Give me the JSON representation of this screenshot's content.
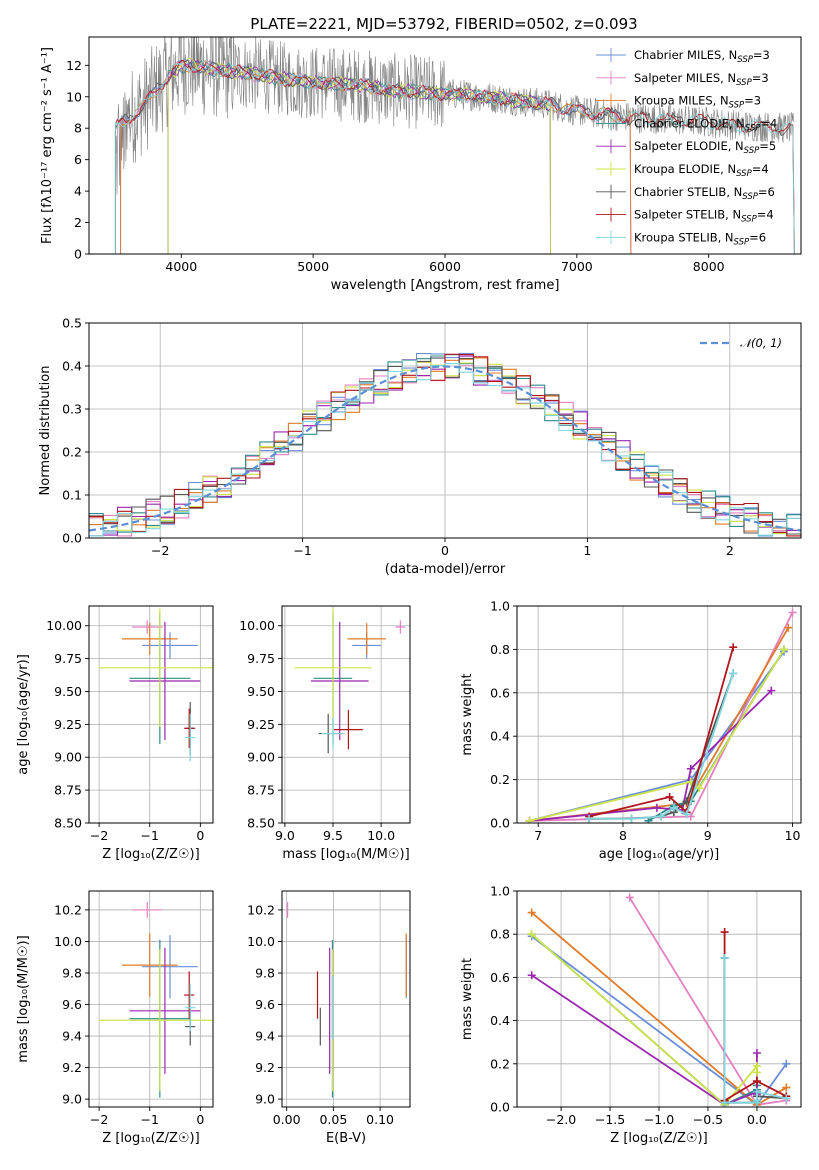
{
  "figure_title": "PLATE=2221, MJD=53792, FIBERID=0502, z=0.093",
  "colors": {
    "Chabrier MILES": "#6a8fd8",
    "Salpeter MILES": "#e47fc0",
    "Kroupa MILES": "#e07b28",
    "Chabrier ELODIE": "#2e8b8b",
    "Salpeter ELODIE": "#9b27b0",
    "Kroupa ELODIE": "#cde34a",
    "Chabrier STELIB": "#555555",
    "Salpeter STELIB": "#b0151c",
    "Kroupa STELIB": "#7fd6dc",
    "data": "#808080",
    "normal": "#5b8fd6"
  },
  "chart_data": [
    {
      "panel": "spectrum",
      "type": "line",
      "xlabel": "wavelength [Angstrom, rest frame]",
      "ylabel": "Flux [fλ10⁻¹⁷ erg cm⁻² s⁻¹ A⁻¹]",
      "xlim": [
        3300,
        8700
      ],
      "ylim": [
        0,
        13.8
      ],
      "xticks": [
        4000,
        5000,
        6000,
        7000,
        8000
      ],
      "yticks": [
        0,
        2,
        4,
        6,
        8,
        10,
        12
      ],
      "grid": false,
      "legend_position": "top-right",
      "legend": [
        {
          "label": "Chabrier MILES, N",
          "sub": "SSP",
          "val": "=3"
        },
        {
          "label": "Salpeter MILES, N",
          "sub": "SSP",
          "val": "=3"
        },
        {
          "label": "Kroupa MILES, N",
          "sub": "SSP",
          "val": "=3"
        },
        {
          "label": "Chabrier ELODIE, N",
          "sub": "SSP",
          "val": "=4"
        },
        {
          "label": "Salpeter ELODIE, N",
          "sub": "SSP",
          "val": "=5"
        },
        {
          "label": "Kroupa ELODIE, N",
          "sub": "SSP",
          "val": "=4"
        },
        {
          "label": "Chabrier STELIB, N",
          "sub": "SSP",
          "val": "=6"
        },
        {
          "label": "Salpeter STELIB, N",
          "sub": "SSP",
          "val": "=4"
        },
        {
          "label": "Kroupa STELIB, N",
          "sub": "SSP",
          "val": "=6"
        }
      ],
      "continuum": {
        "x": [
          3500,
          3600,
          3700,
          3800,
          3900,
          4000,
          4100,
          4200,
          4400,
          4600,
          4800,
          5000,
          5200,
          5400,
          5600,
          5800,
          6000,
          6200,
          6400,
          6600,
          6800,
          7000,
          7200,
          7400,
          7600,
          7800,
          8000,
          8200,
          8400,
          8600
        ],
        "y": [
          8.0,
          8.6,
          9.3,
          10.3,
          11.3,
          12.0,
          12.0,
          11.8,
          11.6,
          11.4,
          11.1,
          10.9,
          10.8,
          10.7,
          10.4,
          10.3,
          10.2,
          10.1,
          9.9,
          9.7,
          9.5,
          9.1,
          8.9,
          8.7,
          8.6,
          8.5,
          8.4,
          8.2,
          8.1,
          8.0
        ]
      },
      "model_ranges": {
        "Chabrier MILES": [
          3540,
          7410
        ],
        "Salpeter MILES": [
          3540,
          7410
        ],
        "Kroupa MILES": [
          3540,
          7410
        ],
        "Chabrier ELODIE": [
          3900,
          6800
        ],
        "Salpeter ELODIE": [
          3900,
          6800
        ],
        "Kroupa ELODIE": [
          3900,
          6800
        ],
        "Chabrier STELIB": [
          3500,
          8650
        ],
        "Salpeter STELIB": [
          3500,
          8650
        ],
        "Kroupa STELIB": [
          3500,
          8650
        ]
      }
    },
    {
      "panel": "residual_histogram",
      "type": "line",
      "xlabel": "(data-model)/error",
      "ylabel": "Normed distribution",
      "xlim": [
        -2.5,
        2.5
      ],
      "ylim": [
        0,
        0.5
      ],
      "xticks": [
        -2,
        -1,
        0,
        1,
        2
      ],
      "yticks": [
        0.0,
        0.1,
        0.2,
        0.3,
        0.4,
        0.5
      ],
      "grid": true,
      "legend_position": "top-right",
      "legend": [
        {
          "label": "𝒩(0, 1)"
        }
      ],
      "bin_edges_start": -2.5,
      "bin_width": 0.1,
      "series_note_free": true
    },
    {
      "panel": "age_vs_Z",
      "type": "scatter",
      "xlabel": "Z [log₁₀(Z/Z☉)]",
      "ylabel": "age  [log₁₀(age/yr)]",
      "xlim": [
        -2.2,
        0.25
      ],
      "ylim": [
        8.5,
        10.15
      ],
      "xticks": [
        -2,
        -1,
        0
      ],
      "yticks": [
        8.5,
        8.75,
        9.0,
        9.25,
        9.5,
        9.75,
        10.0
      ],
      "grid": true,
      "points": [
        {
          "s": "Chabrier MILES",
          "x": -0.6,
          "xerr": 0.55,
          "y": 9.85,
          "yerr": 0.1
        },
        {
          "s": "Salpeter MILES",
          "x": -1.05,
          "xerr": 0.3,
          "y": 9.99,
          "yerr": 0.05
        },
        {
          "s": "Kroupa MILES",
          "x": -1.0,
          "xerr": 0.55,
          "y": 9.9,
          "yerr": 0.12
        },
        {
          "s": "Chabrier ELODIE",
          "x": -0.8,
          "xerr": 0.6,
          "y": 9.6,
          "yerr": 0.5
        },
        {
          "s": "Salpeter ELODIE",
          "x": -0.7,
          "xerr": 0.7,
          "y": 9.58,
          "yerr": 0.45
        },
        {
          "s": "Kroupa ELODIE",
          "x": -0.8,
          "xerr": 1.2,
          "y": 9.68,
          "yerr": 0.45
        },
        {
          "s": "Chabrier STELIB",
          "x": -0.2,
          "xerr": 0.1,
          "y": 9.22,
          "yerr": 0.2
        },
        {
          "s": "Salpeter STELIB",
          "x": -0.22,
          "xerr": 0.1,
          "y": 9.22,
          "yerr": 0.15
        },
        {
          "s": "Kroupa STELIB",
          "x": -0.2,
          "xerr": 0.1,
          "y": 9.15,
          "yerr": 0.18
        }
      ]
    },
    {
      "panel": "age_vs_mass",
      "type": "scatter",
      "xlabel": "mass [log₁₀(M/M☉)]",
      "ylabel": "",
      "xlim": [
        8.97,
        10.3
      ],
      "ylim": [
        8.5,
        10.15
      ],
      "xticks": [
        9.0,
        9.5,
        10.0
      ],
      "yticks": [
        8.5,
        8.75,
        9.0,
        9.25,
        9.5,
        9.75,
        10.0
      ],
      "grid": true,
      "points": [
        {
          "s": "Chabrier MILES",
          "x": 9.85,
          "xerr": 0.15,
          "y": 9.85,
          "yerr": 0.1
        },
        {
          "s": "Salpeter MILES",
          "x": 10.2,
          "xerr": 0.05,
          "y": 9.99,
          "yerr": 0.05
        },
        {
          "s": "Kroupa MILES",
          "x": 9.85,
          "xerr": 0.2,
          "y": 9.9,
          "yerr": 0.12
        },
        {
          "s": "Chabrier ELODIE",
          "x": 9.5,
          "xerr": 0.2,
          "y": 9.6,
          "yerr": 0.5
        },
        {
          "s": "Salpeter ELODIE",
          "x": 9.57,
          "xerr": 0.3,
          "y": 9.58,
          "yerr": 0.45
        },
        {
          "s": "Kroupa ELODIE",
          "x": 9.5,
          "xerr": 0.4,
          "y": 9.68,
          "yerr": 0.45
        },
        {
          "s": "Chabrier STELIB",
          "x": 9.45,
          "xerr": 0.1,
          "y": 9.18,
          "yerr": 0.15
        },
        {
          "s": "Salpeter STELIB",
          "x": 9.66,
          "xerr": 0.15,
          "y": 9.21,
          "yerr": 0.15
        },
        {
          "s": "Kroupa STELIB",
          "x": 9.5,
          "xerr": 0.12,
          "y": 9.18,
          "yerr": 0.12
        }
      ]
    },
    {
      "panel": "weight_vs_age",
      "type": "line",
      "xlabel": "age  [log₁₀(age/yr)]",
      "ylabel": "mass weight",
      "xlim": [
        6.75,
        10.1
      ],
      "ylim": [
        0,
        1.0
      ],
      "xticks": [
        7,
        8,
        9,
        10
      ],
      "yticks": [
        0.0,
        0.2,
        0.4,
        0.6,
        0.8,
        1.0
      ],
      "grid": true,
      "series": [
        {
          "s": "Chabrier MILES",
          "x": [
            6.9,
            8.8,
            9.9
          ],
          "y": [
            0.01,
            0.2,
            0.79
          ]
        },
        {
          "s": "Salpeter MILES",
          "x": [
            6.9,
            8.8,
            10.0
          ],
          "y": [
            0.01,
            0.03,
            0.97
          ]
        },
        {
          "s": "Kroupa MILES",
          "x": [
            6.9,
            8.75,
            9.95
          ],
          "y": [
            0.01,
            0.09,
            0.9
          ]
        },
        {
          "s": "Chabrier ELODIE",
          "x": [
            8.3,
            8.6,
            8.8,
            9.9
          ],
          "y": [
            0.01,
            0.08,
            0.1,
            0.8
          ]
        },
        {
          "s": "Salpeter ELODIE",
          "x": [
            6.9,
            8.4,
            8.7,
            8.8,
            9.75
          ],
          "y": [
            0.01,
            0.07,
            0.06,
            0.25,
            0.61
          ]
        },
        {
          "s": "Kroupa ELODIE",
          "x": [
            6.9,
            8.8,
            8.9,
            9.9
          ],
          "y": [
            0.01,
            0.19,
            0.16,
            0.8
          ]
        },
        {
          "s": "Chabrier STELIB",
          "x": [
            7.6,
            8.1,
            8.45,
            8.6,
            8.75,
            9.3
          ],
          "y": [
            0.02,
            0.02,
            0.03,
            0.05,
            0.1,
            0.69
          ]
        },
        {
          "s": "Salpeter STELIB",
          "x": [
            7.6,
            8.55,
            8.75,
            9.3
          ],
          "y": [
            0.03,
            0.12,
            0.05,
            0.81
          ]
        },
        {
          "s": "Kroupa STELIB",
          "x": [
            7.6,
            8.1,
            8.45,
            8.6,
            8.75,
            9.3
          ],
          "y": [
            0.02,
            0.02,
            0.03,
            0.07,
            0.04,
            0.69
          ]
        }
      ]
    },
    {
      "panel": "mass_vs_Z",
      "type": "scatter",
      "xlabel": "Z [log₁₀(Z/Z☉)]",
      "ylabel": "mass [log₁₀(M/M☉)]",
      "xlim": [
        -2.2,
        0.25
      ],
      "ylim": [
        8.95,
        10.32
      ],
      "xticks": [
        -2,
        -1,
        0
      ],
      "yticks": [
        9.0,
        9.2,
        9.4,
        9.6,
        9.8,
        10.0,
        10.2
      ],
      "grid": true,
      "points": [
        {
          "s": "Chabrier MILES",
          "x": -0.6,
          "xerr": 0.55,
          "y": 9.84,
          "yerr": 0.2
        },
        {
          "s": "Salpeter MILES",
          "x": -1.05,
          "xerr": 0.3,
          "y": 10.2,
          "yerr": 0.05
        },
        {
          "s": "Kroupa MILES",
          "x": -1.0,
          "xerr": 0.55,
          "y": 9.85,
          "yerr": 0.2
        },
        {
          "s": "Chabrier ELODIE",
          "x": -0.8,
          "xerr": 0.6,
          "y": 9.51,
          "yerr": 0.5
        },
        {
          "s": "Salpeter ELODIE",
          "x": -0.7,
          "xerr": 0.7,
          "y": 9.56,
          "yerr": 0.4
        },
        {
          "s": "Kroupa ELODIE",
          "x": -0.8,
          "xerr": 1.2,
          "y": 9.5,
          "yerr": 0.45
        },
        {
          "s": "Chabrier STELIB",
          "x": -0.2,
          "xerr": 0.1,
          "y": 9.46,
          "yerr": 0.12
        },
        {
          "s": "Salpeter STELIB",
          "x": -0.22,
          "xerr": 0.1,
          "y": 9.66,
          "yerr": 0.15
        },
        {
          "s": "Kroupa STELIB",
          "x": -0.2,
          "xerr": 0.1,
          "y": 9.58,
          "yerr": 0.15
        }
      ]
    },
    {
      "panel": "mass_vs_EBV",
      "type": "scatter",
      "xlabel": "E(B-V)",
      "ylabel": "",
      "xlim": [
        -0.005,
        0.132
      ],
      "ylim": [
        8.95,
        10.32
      ],
      "xticks": [
        0.0,
        0.05,
        0.1
      ],
      "xticklabels": [
        "0.00",
        "0.05",
        "0.10"
      ],
      "yticks": [
        9.0,
        9.2,
        9.4,
        9.6,
        9.8,
        10.0,
        10.2
      ],
      "grid": true,
      "points": [
        {
          "s": "Chabrier MILES",
          "x": 0.128,
          "xerr": 0,
          "y": 9.84,
          "yerr": 0.2
        },
        {
          "s": "Salpeter MILES",
          "x": 0.001,
          "xerr": 0,
          "y": 10.2,
          "yerr": 0.05
        },
        {
          "s": "Kroupa MILES",
          "x": 0.128,
          "xerr": 0,
          "y": 9.85,
          "yerr": 0.2
        },
        {
          "s": "Chabrier ELODIE",
          "x": 0.049,
          "xerr": 0,
          "y": 9.51,
          "yerr": 0.5
        },
        {
          "s": "Salpeter ELODIE",
          "x": 0.046,
          "xerr": 0,
          "y": 9.56,
          "yerr": 0.4
        },
        {
          "s": "Kroupa ELODIE",
          "x": 0.049,
          "xerr": 0,
          "y": 9.5,
          "yerr": 0.45
        },
        {
          "s": "Chabrier STELIB",
          "x": 0.036,
          "xerr": 0,
          "y": 9.46,
          "yerr": 0.12
        },
        {
          "s": "Salpeter STELIB",
          "x": 0.033,
          "xerr": 0,
          "y": 9.66,
          "yerr": 0.15
        },
        {
          "s": "Kroupa STELIB",
          "x": 0.049,
          "xerr": 0,
          "y": 9.58,
          "yerr": 0.2
        }
      ]
    },
    {
      "panel": "weight_vs_Z",
      "type": "line",
      "xlabel": "Z [log₁₀(Z/Z☉)]",
      "ylabel": "mass weight",
      "xlim": [
        -2.45,
        0.45
      ],
      "ylim": [
        0,
        1.0
      ],
      "xticks": [
        -2.0,
        -1.5,
        -1.0,
        -0.5,
        0.0
      ],
      "yticks": [
        0.0,
        0.2,
        0.4,
        0.6,
        0.8,
        1.0
      ],
      "grid": true,
      "series": [
        {
          "s": "Chabrier MILES",
          "x": [
            -2.3,
            0.0,
            0.3
          ],
          "y": [
            0.79,
            0.01,
            0.2
          ]
        },
        {
          "s": "Salpeter MILES",
          "x": [
            -1.3,
            0.0,
            0.3
          ],
          "y": [
            0.97,
            0.01,
            0.03
          ]
        },
        {
          "s": "Kroupa MILES",
          "x": [
            -2.3,
            0.0,
            0.3
          ],
          "y": [
            0.9,
            0.01,
            0.09
          ]
        },
        {
          "s": "Chabrier ELODIE",
          "x": [
            -2.3,
            -0.33,
            0.0,
            0.0
          ],
          "y": [
            0.8,
            0.01,
            0.08,
            0.1
          ]
        },
        {
          "s": "Salpeter ELODIE",
          "x": [
            -2.3,
            -0.33,
            0.0,
            0.0,
            0.0
          ],
          "y": [
            0.61,
            0.01,
            0.07,
            0.06,
            0.25
          ]
        },
        {
          "s": "Kroupa ELODIE",
          "x": [
            -2.3,
            -0.33,
            0.0,
            0.0
          ],
          "y": [
            0.8,
            0.01,
            0.19,
            0.16
          ]
        },
        {
          "s": "Chabrier STELIB",
          "x": [
            -0.33,
            -0.33,
            0.0,
            0.0,
            0.0,
            0.3
          ],
          "y": [
            0.69,
            0.02,
            0.02,
            0.03,
            0.05,
            0.04
          ]
        },
        {
          "s": "Salpeter STELIB",
          "x": [
            -0.33,
            -0.33,
            0.0,
            0.3
          ],
          "y": [
            0.81,
            0.03,
            0.12,
            0.05
          ]
        },
        {
          "s": "Kroupa STELIB",
          "x": [
            -0.33,
            -0.33,
            0.0,
            0.0,
            0.0,
            0.3
          ],
          "y": [
            0.69,
            0.02,
            0.02,
            0.03,
            0.07,
            0.04
          ]
        }
      ]
    }
  ]
}
